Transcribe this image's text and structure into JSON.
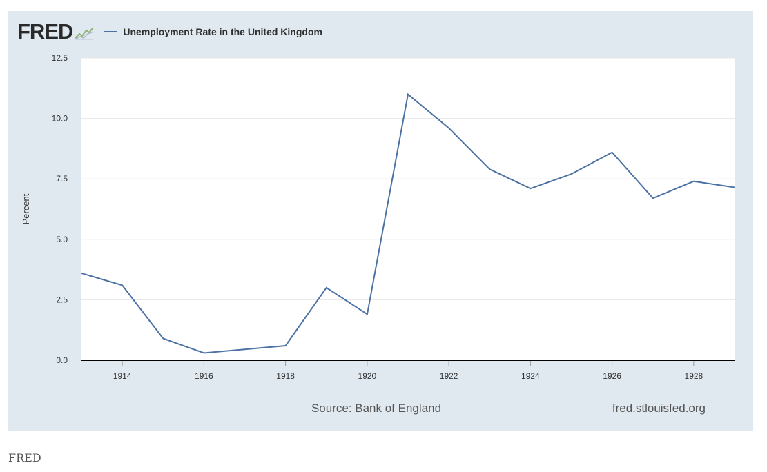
{
  "header": {
    "logo_text": "FRED",
    "logo_icon": "fred-chart-line-icon"
  },
  "chart_data": {
    "type": "line",
    "title": "Unemployment Rate in the United Kingdom",
    "ylabel": "Percent",
    "xlabel": "",
    "x": [
      1913,
      1914,
      1915,
      1916,
      1917,
      1918,
      1919,
      1920,
      1921,
      1922,
      1923,
      1924,
      1925,
      1926,
      1927,
      1928,
      1929
    ],
    "series": [
      {
        "name": "Unemployment Rate in the United Kingdom",
        "values": [
          3.6,
          3.1,
          0.9,
          0.3,
          0.45,
          0.6,
          3.0,
          1.9,
          11.0,
          9.6,
          7.9,
          7.1,
          7.7,
          8.6,
          6.7,
          7.4,
          7.15
        ],
        "color": "#4c72a4"
      }
    ],
    "xlim": [
      1913,
      1929
    ],
    "ylim": [
      0,
      12.5
    ],
    "y_ticks": [
      "0.0",
      "2.5",
      "5.0",
      "7.5",
      "10.0",
      "12.5"
    ],
    "y_tick_values": [
      0,
      2.5,
      5,
      7.5,
      10,
      12.5
    ],
    "x_ticks": [
      "1914",
      "1916",
      "1918",
      "1920",
      "1922",
      "1924",
      "1926",
      "1928"
    ],
    "x_tick_values": [
      1914,
      1916,
      1918,
      1920,
      1922,
      1924,
      1926,
      1928
    ],
    "grid": true,
    "legend": "top-left"
  },
  "footer": {
    "source": "Source: Bank of England",
    "site": "fred.stlouisfed.org"
  },
  "caption": "FRED",
  "colors": {
    "panel_background": "#e1e9f0",
    "plot_background": "#ffffff",
    "line": "#4c72a4",
    "axis": "#000000",
    "grid": "#e6e6e6"
  }
}
